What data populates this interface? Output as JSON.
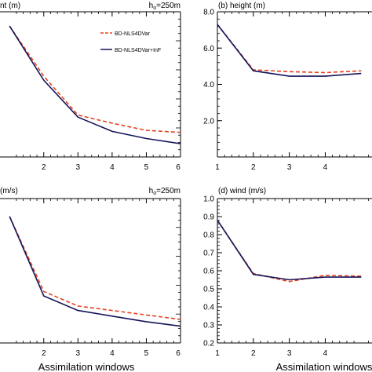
{
  "colors": {
    "bd": "#e8401c",
    "inf": "#14145a",
    "axis": "#000000"
  },
  "legend": {
    "items": [
      {
        "label": "BD-NLS4DVar",
        "style": "dashed",
        "color": "#e8401c"
      },
      {
        "label": "BD-NLS4DVar+InF",
        "style": "solid",
        "color": "#14145a"
      }
    ]
  },
  "chart_data": [
    {
      "panel": "left-top",
      "type": "line",
      "title": "nt (m)",
      "annotation": {
        "base": "h",
        "sub": "o",
        "rest": "=250m"
      },
      "xlabel": "",
      "x": [
        1,
        2,
        3,
        4,
        5,
        6
      ],
      "xticks": [
        "2",
        "3",
        "4",
        "5",
        "6"
      ],
      "series": [
        {
          "name": "BD-NLS4DVar",
          "values": [
            7.3,
            4.85,
            2.95,
            2.55,
            2.2,
            2.1
          ]
        },
        {
          "name": "BD-NLS4DVar+InF",
          "values": [
            7.3,
            4.65,
            2.85,
            2.15,
            1.8,
            1.55
          ]
        }
      ]
    },
    {
      "panel": "right-top",
      "type": "line",
      "title": "(b) height (m)",
      "xlabel": "",
      "x": [
        1,
        2,
        3,
        4,
        5
      ],
      "xlim": [
        1,
        5.3
      ],
      "ylim": [
        0,
        8
      ],
      "yticks": [
        "2.0",
        "4.0",
        "6.0",
        "8.0"
      ],
      "xticks": [
        "1",
        "2",
        "3",
        "4"
      ],
      "series": [
        {
          "name": "BD-NLS4DVar",
          "values": [
            7.3,
            4.8,
            4.7,
            4.65,
            4.75
          ]
        },
        {
          "name": "BD-NLS4DVar+InF",
          "values": [
            7.3,
            4.75,
            4.45,
            4.45,
            4.6
          ]
        }
      ]
    },
    {
      "panel": "left-bottom",
      "type": "line",
      "title": "(m/s)",
      "annotation": {
        "base": "h",
        "sub": "o",
        "rest": "=250m"
      },
      "xlabel": "Assimilation windows",
      "x": [
        1,
        2,
        3,
        4,
        5,
        6
      ],
      "xticks": [
        "2",
        "3",
        "4",
        "5",
        "6"
      ],
      "series": [
        {
          "name": "BD-NLS4DVar",
          "values": [
            0.92,
            0.585,
            0.52,
            0.5,
            0.48,
            0.46
          ]
        },
        {
          "name": "BD-NLS4DVar+InF",
          "values": [
            0.92,
            0.565,
            0.5,
            0.475,
            0.45,
            0.43
          ]
        }
      ]
    },
    {
      "panel": "right-bottom",
      "type": "line",
      "title": "(d) wind (m/s)",
      "xlabel": "Assimilation windows",
      "x": [
        1,
        2,
        3,
        4,
        5
      ],
      "xlim": [
        1,
        5.3
      ],
      "ylim": [
        0.2,
        1.0
      ],
      "yticks": [
        "0.2",
        "0.3",
        "0.4",
        "0.5",
        "0.6",
        "0.7",
        "0.8",
        "0.9",
        "1.0"
      ],
      "xticks": [
        "1",
        "2",
        "3",
        "4"
      ],
      "series": [
        {
          "name": "BD-NLS4DVar",
          "values": [
            0.88,
            0.585,
            0.54,
            0.575,
            0.57
          ]
        },
        {
          "name": "BD-NLS4DVar+InF",
          "values": [
            0.88,
            0.58,
            0.55,
            0.565,
            0.565
          ]
        }
      ]
    }
  ]
}
